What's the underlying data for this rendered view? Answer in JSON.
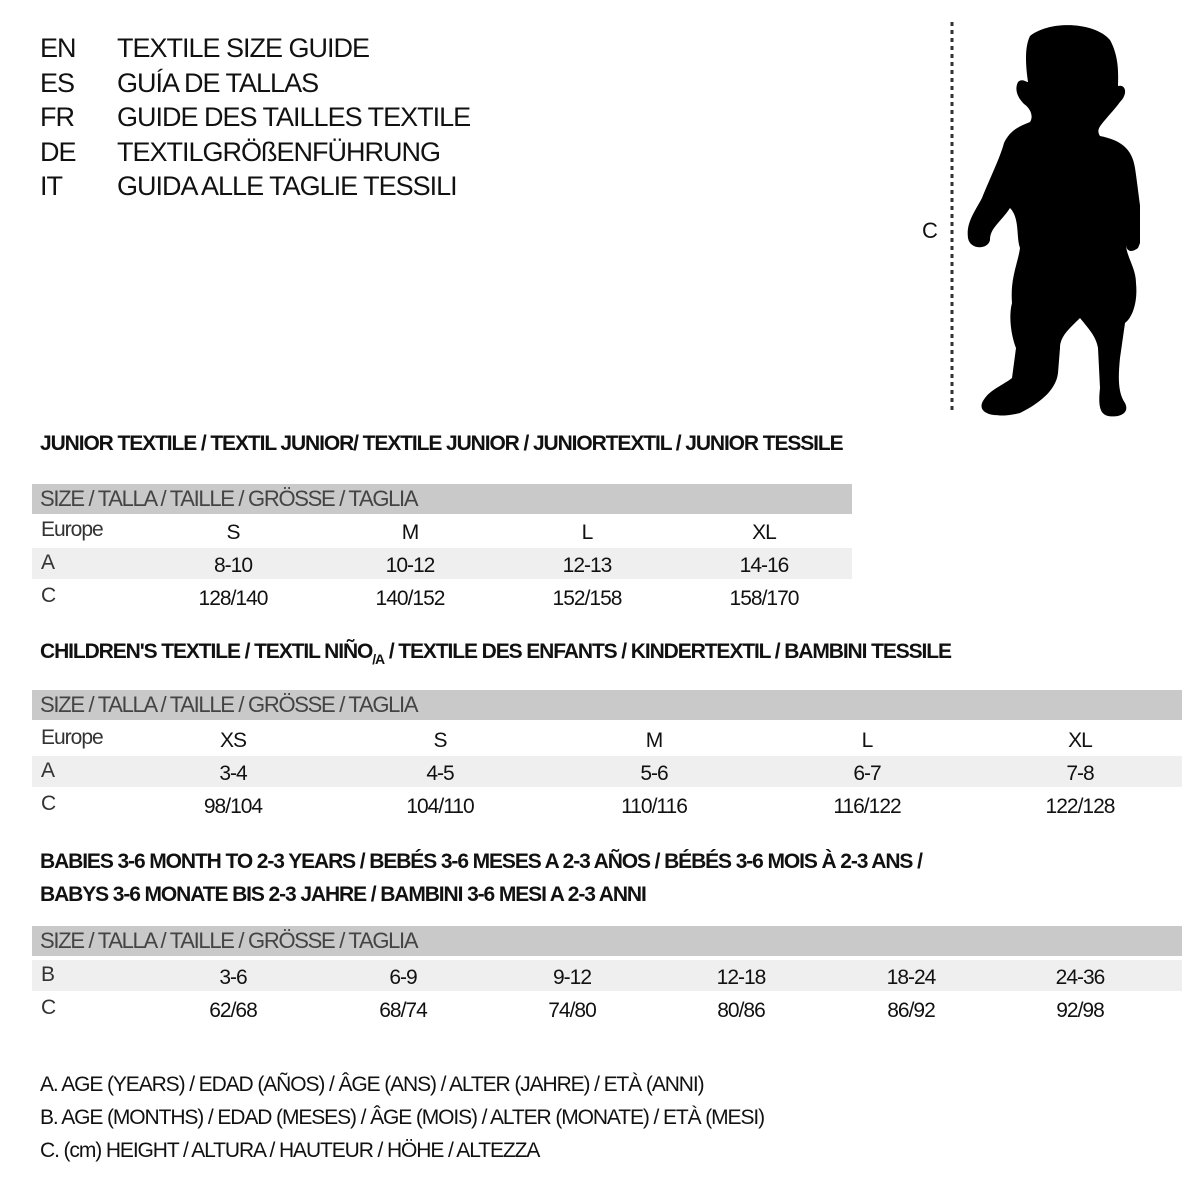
{
  "titles": [
    {
      "code": "EN",
      "text": "TEXTILE SIZE GUIDE"
    },
    {
      "code": "ES",
      "text": "GUÍA DE TALLAS"
    },
    {
      "code": "FR",
      "text": "GUIDE DES TAILLES TEXTILE"
    },
    {
      "code": "DE",
      "text": "TEXTILGRÖßENFÜHRUNG"
    },
    {
      "code": "IT",
      "text": "GUIDA ALLE TAGLIE TESSILI"
    }
  ],
  "figure": {
    "measure_label": "C",
    "icon": "child-silhouette-icon"
  },
  "size_header": "SIZE / TALLA / TAILLE / GRÖSSE / TAGLIA",
  "junior": {
    "heading": "JUNIOR TEXTILE / TEXTIL JUNIOR/ TEXTILE JUNIOR / JUNIORTEXTIL / JUNIOR TESSILE",
    "rows": [
      {
        "label": "Europe",
        "values": [
          "S",
          "M",
          "L",
          "XL"
        ]
      },
      {
        "label": "A",
        "values": [
          "8-10",
          "10-12",
          "12-13",
          "14-16"
        ]
      },
      {
        "label": "C",
        "values": [
          "128/140",
          "140/152",
          "152/158",
          "158/170"
        ]
      }
    ]
  },
  "children": {
    "heading_pre": "CHILDREN'S TEXTILE / TEXTIL NIÑO",
    "heading_sub": "/A",
    "heading_post": " / TEXTILE DES ENFANTS / KINDERTEXTIL / BAMBINI TESSILE",
    "rows": [
      {
        "label": "Europe",
        "values": [
          "XS",
          "S",
          "M",
          "L",
          "XL"
        ]
      },
      {
        "label": "A",
        "values": [
          "3-4",
          "4-5",
          "5-6",
          "6-7",
          "7-8"
        ]
      },
      {
        "label": "C",
        "values": [
          "98/104",
          "104/110",
          "110/116",
          "116/122",
          "122/128"
        ]
      }
    ]
  },
  "babies": {
    "heading_line1": "BABIES 3-6 MONTH TO 2-3 YEARS / BEBÉS 3-6 MESES A 2-3 AÑOS / BÉBÉS 3-6 MOIS À 2-3 ANS /",
    "heading_line2": "BABYS 3-6 MONATE BIS 2-3 JAHRE / BAMBINI 3-6 MESI A 2-3 ANNI",
    "rows": [
      {
        "label": "B",
        "values": [
          "3-6",
          "6-9",
          "9-12",
          "12-18",
          "18-24",
          "24-36"
        ]
      },
      {
        "label": "C",
        "values": [
          "62/68",
          "68/74",
          "74/80",
          "80/86",
          "86/92",
          "92/98"
        ]
      }
    ]
  },
  "legend": [
    "A. AGE (YEARS) / EDAD (AÑOS) / ÂGE (ANS) / ALTER (JAHRE) / ETÀ (ANNI)",
    "B. AGE (MONTHS) / EDAD (MESES) / ÂGE (MOIS) / ALTER (MONATE) / ETÀ (MESI)",
    "C. (cm) HEIGHT / ALTURA / HAUTEUR / HÖHE / ALTEZZA"
  ],
  "colors": {
    "header_bg": "#c9c9c9",
    "shade_bg": "#efefef",
    "text": "#111111"
  }
}
